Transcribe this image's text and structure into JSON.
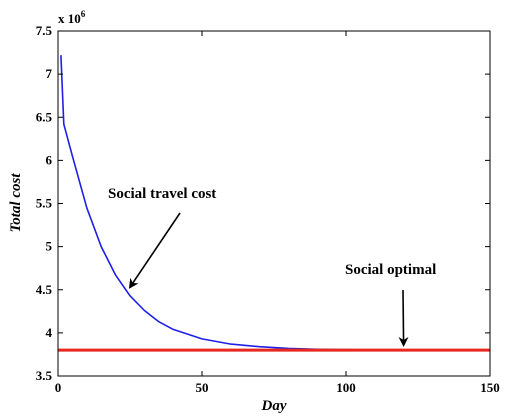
{
  "chart_data": {
    "type": "line",
    "xlabel": "Day",
    "ylabel": "Total cost",
    "exponent_label": "x 10",
    "exponent_power": "6",
    "xlim": [
      0,
      150
    ],
    "ylim": [
      3.5,
      7.5
    ],
    "x_ticks": [
      0,
      50,
      100,
      150
    ],
    "y_ticks": [
      3.5,
      4,
      4.5,
      5,
      5.5,
      6,
      6.5,
      7,
      7.5
    ],
    "y_tick_labels": [
      "3.5",
      "4",
      "4.5",
      "5",
      "5.5",
      "6",
      "6.5",
      "7",
      "7.5"
    ],
    "grid": false,
    "series": [
      {
        "color": "#1f1fe6",
        "x": [
          1,
          2,
          5,
          10,
          15,
          20,
          25,
          30,
          35,
          40,
          50,
          60,
          70,
          80,
          90,
          100,
          110,
          120,
          130,
          140,
          150
        ],
        "y": [
          7.22,
          6.42,
          6.05,
          5.45,
          5.0,
          4.67,
          4.43,
          4.26,
          4.13,
          4.04,
          3.93,
          3.87,
          3.84,
          3.82,
          3.81,
          3.805,
          3.802,
          3.801,
          3.8,
          3.8,
          3.8
        ]
      },
      {
        "color": "#e8281e",
        "x": [
          0,
          150
        ],
        "y": [
          3.8,
          3.8
        ]
      }
    ],
    "annotations": [
      {
        "text": "Social travel cost",
        "arrow_to": [
          25,
          4.53
        ]
      },
      {
        "text": "Social optimal",
        "arrow_to": [
          120,
          3.86
        ]
      }
    ]
  }
}
